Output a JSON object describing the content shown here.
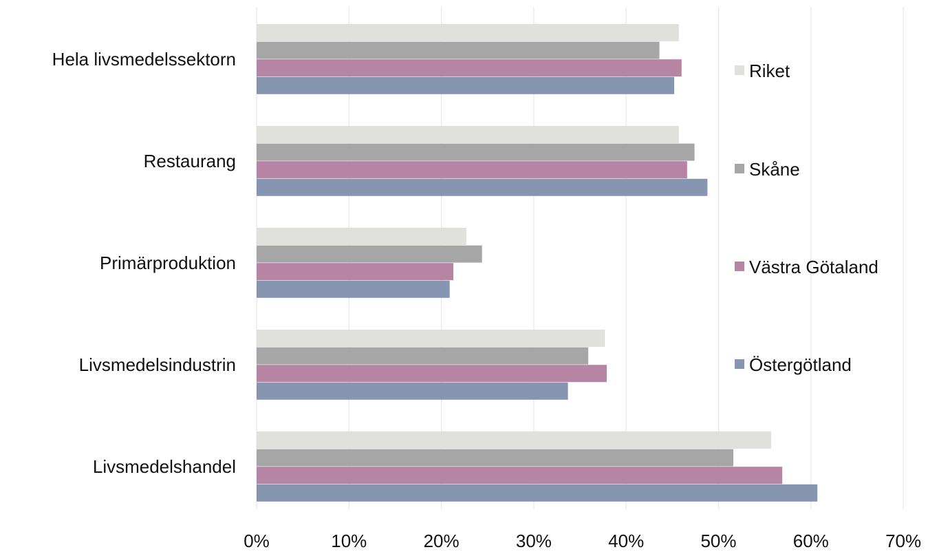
{
  "chart_data": {
    "type": "bar",
    "orientation": "horizontal",
    "categories": [
      "Hela livsmedelssektorn",
      "Restaurang",
      "Primärproduktion",
      "Livsmedelsindustrin",
      "Livsmedelshandel"
    ],
    "series": [
      {
        "name": "Riket",
        "color": "#e0e0dc",
        "values": [
          45.7,
          45.7,
          22.7,
          37.7,
          55.7
        ]
      },
      {
        "name": "Skåne",
        "color": "#a6a6a6",
        "values": [
          43.6,
          47.4,
          24.4,
          35.9,
          51.6
        ]
      },
      {
        "name": "Västra Götaland",
        "color": "#b685a3",
        "values": [
          46.0,
          46.6,
          21.3,
          37.9,
          56.9
        ]
      },
      {
        "name": "Östergötland",
        "color": "#8796b0",
        "values": [
          45.2,
          48.8,
          20.9,
          33.7,
          60.7
        ]
      }
    ],
    "x_ticks": [
      "0%",
      "10%",
      "20%",
      "30%",
      "40%",
      "50%",
      "60%",
      "70%"
    ],
    "xlim": [
      0,
      70
    ],
    "unit": "%",
    "grid": "vertical",
    "legend_position": "right",
    "title": "",
    "xlabel": "",
    "ylabel": ""
  }
}
